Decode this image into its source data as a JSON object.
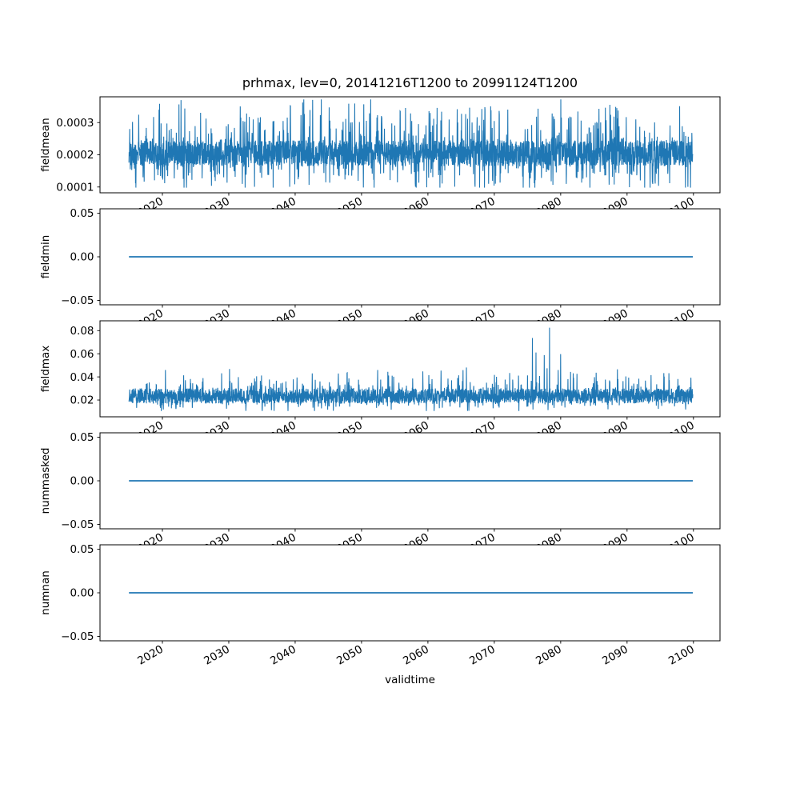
{
  "figure": {
    "background": "#ffffff",
    "text_color": "#000000"
  },
  "chart_data": {
    "type": "line",
    "title": "prhmax, lev=0, 20141216T1200 to 20991124T1200",
    "xlabel": "validtime",
    "grid": false,
    "legend": null,
    "line_color": "#1f77b4",
    "x_ticks": [
      2020,
      2030,
      2040,
      2050,
      2060,
      2070,
      2080,
      2090,
      2100
    ],
    "x_tick_labels": [
      "2020",
      "2030",
      "2040",
      "2050",
      "2060",
      "2070",
      "2080",
      "2090",
      "2100"
    ],
    "x_tick_rotation_deg": 30,
    "x_data_range": [
      2014.96,
      2099.9
    ],
    "x_axis_range": [
      2010.6,
      2104.0
    ],
    "subplots": [
      {
        "ylabel": "fieldmean",
        "yticks": [
          {
            "v": 0.0001,
            "label": "0.0001"
          },
          {
            "v": 0.0002,
            "label": "0.0002"
          },
          {
            "v": 0.0003,
            "label": "0.0003"
          }
        ],
        "ylim": [
          8.2e-05,
          0.00038
        ],
        "series_type": "noise",
        "summary": {
          "mean": 0.000205,
          "dense_band": [
            0.000165,
            0.000245
          ],
          "min": 0.0001,
          "max": 0.00037
        },
        "gen": {
          "seed": 101,
          "n": 3000,
          "base": 0.000205,
          "band": 4e-05,
          "spike_prob": 0.32,
          "spike_up": 0.00014,
          "spike_down": 0.0001,
          "spike_pow": 1.6,
          "clip": [
            9.8e-05,
            0.000372
          ]
        }
      },
      {
        "ylabel": "fieldmin",
        "yticks": [
          {
            "v": -0.05,
            "label": "−0.05"
          },
          {
            "v": 0.0,
            "label": "0.00"
          },
          {
            "v": 0.05,
            "label": "0.05"
          }
        ],
        "ylim": [
          -0.055,
          0.055
        ],
        "series_type": "constant",
        "value": 0.0
      },
      {
        "ylabel": "fieldmax",
        "yticks": [
          {
            "v": 0.02,
            "label": "0.02"
          },
          {
            "v": 0.04,
            "label": "0.04"
          },
          {
            "v": 0.06,
            "label": "0.06"
          },
          {
            "v": 0.08,
            "label": "0.08"
          }
        ],
        "ylim": [
          0.0055,
          0.0885
        ],
        "series_type": "noise",
        "summary": {
          "mean": 0.0235,
          "dense_band": [
            0.015,
            0.031
          ],
          "typical_spikes": 0.05,
          "burst_years": [
            2073,
            2081
          ],
          "burst_peak": 0.082
        },
        "gen": {
          "seed": 202,
          "n": 3000,
          "base": 0.0235,
          "band": 0.0065,
          "spike_prob": 0.28,
          "spike_up": 0.019,
          "spike_down": 0.009,
          "spike_pow": 2.0,
          "burst_center": 2077.5,
          "burst_sigma": 2.2,
          "burst_gain": 2.7,
          "clip": [
            0.0105,
            0.0825
          ]
        }
      },
      {
        "ylabel": "nummasked",
        "yticks": [
          {
            "v": -0.05,
            "label": "−0.05"
          },
          {
            "v": 0.0,
            "label": "0.00"
          },
          {
            "v": 0.05,
            "label": "0.05"
          }
        ],
        "ylim": [
          -0.055,
          0.055
        ],
        "series_type": "constant",
        "value": 0.0
      },
      {
        "ylabel": "numnan",
        "yticks": [
          {
            "v": -0.05,
            "label": "−0.05"
          },
          {
            "v": 0.0,
            "label": "0.00"
          },
          {
            "v": 0.05,
            "label": "0.05"
          }
        ],
        "ylim": [
          -0.055,
          0.055
        ],
        "series_type": "constant",
        "value": 0.0
      }
    ]
  }
}
